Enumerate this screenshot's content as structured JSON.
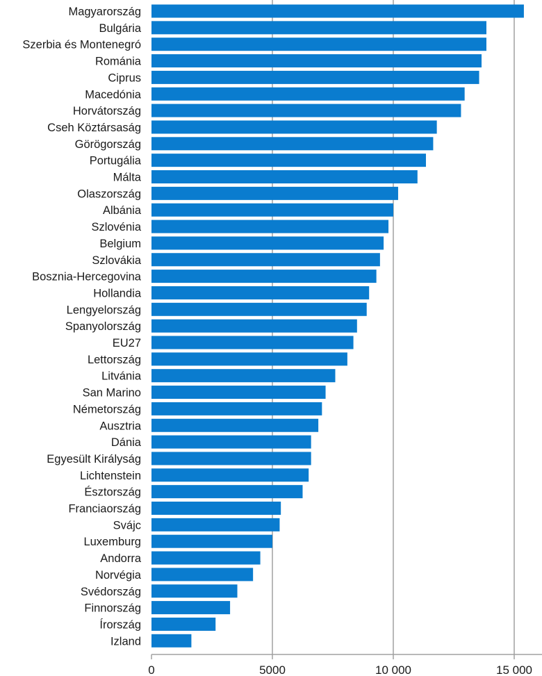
{
  "chart_data": {
    "type": "bar",
    "orientation": "horizontal",
    "title": "",
    "xlabel": "",
    "ylabel": "",
    "xlim": [
      0,
      16000
    ],
    "grid": true,
    "bar_color": "#0a7ccf",
    "grid_color": "#b8b8b8",
    "ticks": [
      {
        "value": 0,
        "label": "0"
      },
      {
        "value": 5000,
        "label": "5000"
      },
      {
        "value": 10000,
        "label": "10 000"
      },
      {
        "value": 15000,
        "label": "15 000"
      }
    ],
    "categories": [
      "Magyarország",
      "Bulgária",
      "Szerbia és Montenegró",
      "Románia",
      "Ciprus",
      "Macedónia",
      "Horvátország",
      "Cseh Köztársaság",
      "Görögország",
      "Portugália",
      "Málta",
      "Olaszország",
      "Albánia",
      "Szlovénia",
      "Belgium",
      "Szlovákia",
      "Bosznia-Hercegovina",
      "Hollandia",
      "Lengyelország",
      "Spanyolország",
      "EU27",
      "Lettország",
      "Litvánia",
      "San Marino",
      "Németország",
      "Ausztria",
      "Dánia",
      "Egyesült Királyság",
      "Lichtenstein",
      "Észtország",
      "Franciaország",
      "Svájc",
      "Luxemburg",
      "Andorra",
      "Norvégia",
      "Svédország",
      "Finnország",
      "Írország",
      "Izland"
    ],
    "values": [
      15400,
      13850,
      13850,
      13650,
      13550,
      12950,
      12800,
      11800,
      11650,
      11350,
      11000,
      10200,
      10000,
      9800,
      9600,
      9450,
      9300,
      9000,
      8900,
      8500,
      8350,
      8100,
      7600,
      7200,
      7050,
      6900,
      6600,
      6600,
      6500,
      6250,
      5350,
      5300,
      5000,
      4500,
      4200,
      3550,
      3250,
      2650,
      1650
    ]
  }
}
